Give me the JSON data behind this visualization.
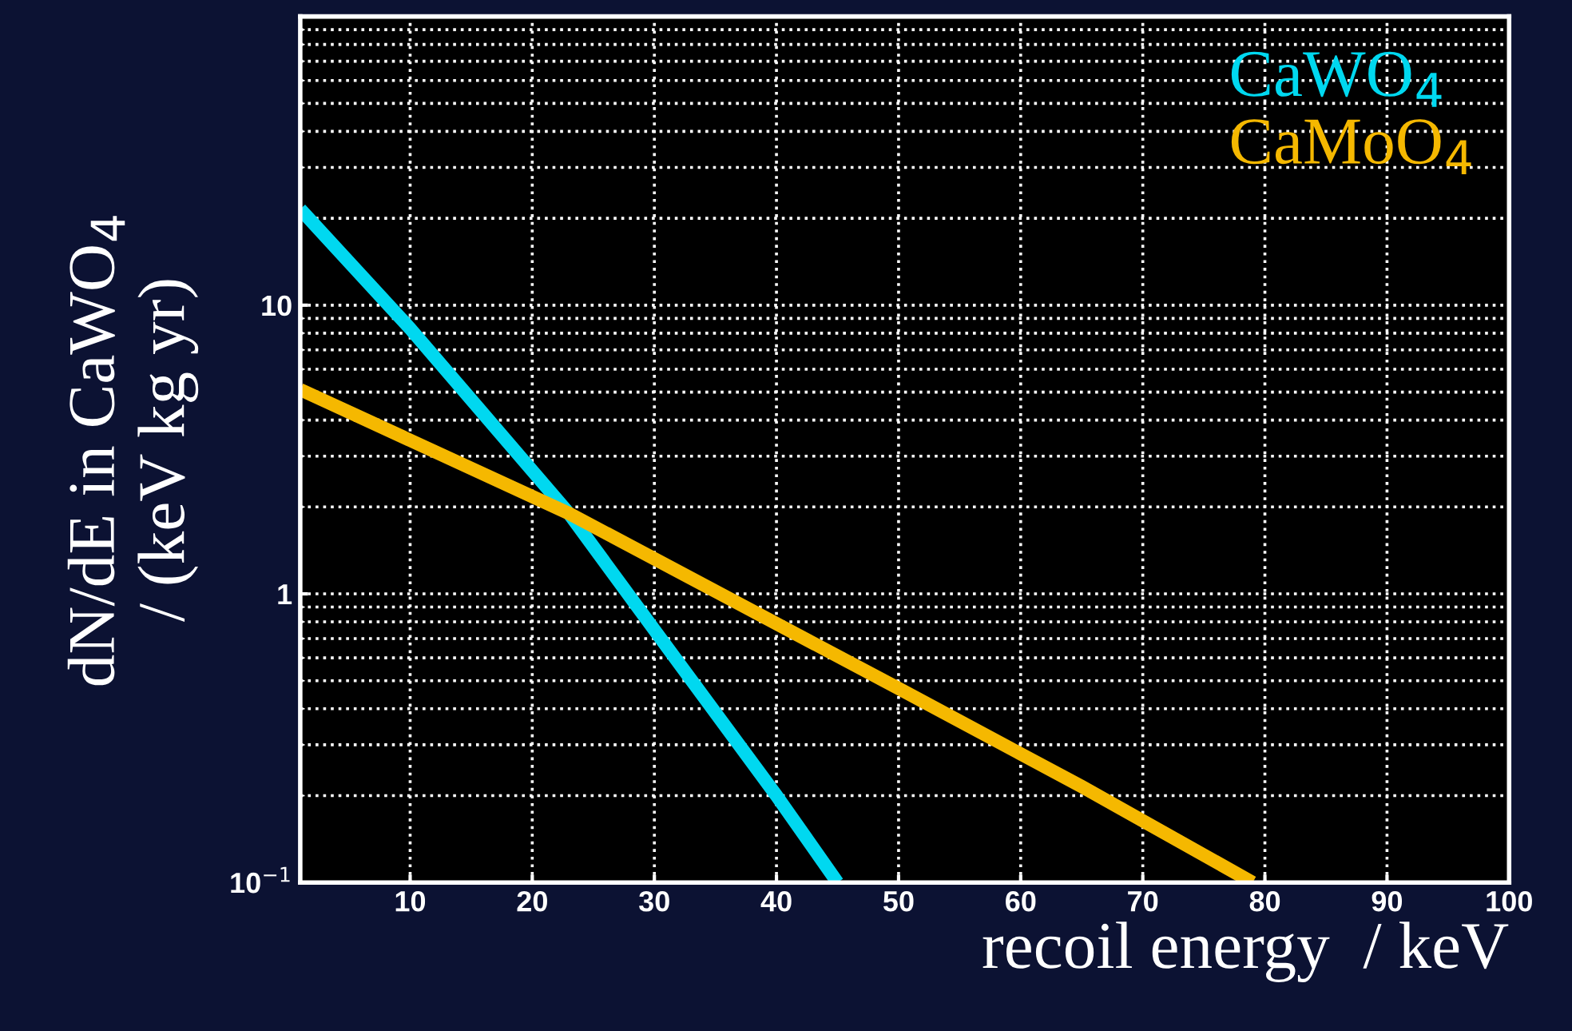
{
  "chart_data": {
    "type": "line",
    "xlabel": "recoil energy  / keV",
    "ylabel": "dN/dE in CaWO$_{4}$\n/ (keV kg yr)",
    "series": [
      {
        "name": "CaWO$_{4}$",
        "color": "#00d8f0",
        "x": [
          1,
          10,
          23,
          30,
          40,
          45
        ],
        "values": [
          21.5,
          8.3,
          1.9,
          0.75,
          0.2,
          0.1
        ]
      },
      {
        "name": "CaMoO$_{4}$",
        "color": "#f5b800",
        "x": [
          1,
          23,
          50,
          65,
          79
        ],
        "values": [
          5.1,
          1.9,
          0.47,
          0.215,
          0.1
        ]
      }
    ],
    "xlim": [
      1,
      100
    ],
    "ylim": [
      0.1,
      100
    ],
    "log": "y",
    "xticks": [
      10,
      20,
      30,
      40,
      50,
      60,
      70,
      80,
      90,
      100
    ],
    "yticks": [
      {
        "value": 0.1,
        "label": "10$^{−1}$"
      },
      1,
      10,
      {
        "value": 100,
        "label": null
      }
    ],
    "grid": true,
    "legend": "top right",
    "line_style": "solid",
    "marker": "none"
  }
}
